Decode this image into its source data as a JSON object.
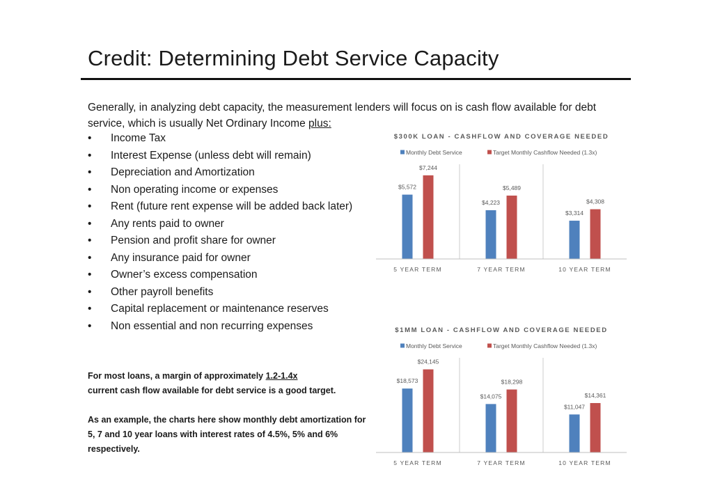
{
  "title": "Credit: Determining Debt Service Capacity",
  "intro": {
    "text": "Generally, in analyzing debt capacity, the measurement lenders will focus on is cash flow available for debt service, which is usually Net Ordinary Income ",
    "emphasis": "plus:"
  },
  "bullet_symbol": "•",
  "bullets": [
    "Income Tax",
    "Interest Expense (unless debt will remain)",
    "Depreciation and Amortization",
    "Non operating income or expenses",
    "Rent (future rent expense will be added back later)",
    "Any rents paid to owner",
    "Pension and profit share for owner",
    "Any insurance paid for owner",
    "Owner’s excess compensation",
    "Other payroll benefits",
    "Capital replacement or maintenance reserves",
    "Non essential and non recurring expenses"
  ],
  "note": {
    "line1_pre": "For most loans, a margin of approximately ",
    "line1_emph": "1.2-1.4x",
    "line2": "current cash flow available for debt service is a good target.",
    "para2": "As an example, the charts here show monthly debt amortization for 5, 7 and 10 year loans with interest rates of 4.5%, 5% and 6% respectively."
  },
  "colors": {
    "series1": "#4f81bd",
    "series2": "#c0504d",
    "axis": "#bfbfbf",
    "label": "#595959"
  },
  "chart_data": [
    {
      "type": "bar",
      "title": "$300K LOAN - CASHFLOW AND COVERAGE NEEDED",
      "categories": [
        "5 YEAR TERM",
        "7 YEAR TERM",
        "10 YEAR TERM"
      ],
      "series": [
        {
          "name": "Monthly Debt Service",
          "values": [
            5572,
            4223,
            3314
          ],
          "labels": [
            "$5,572",
            "$4,223",
            "$3,314"
          ]
        },
        {
          "name": "Target Monthly Cashflow Needed (1.3x)",
          "values": [
            7244,
            5489,
            4308
          ],
          "labels": [
            "$7,244",
            "$5,489",
            "$4,308"
          ]
        }
      ],
      "ylim": [
        0,
        8200
      ],
      "legend": "top",
      "grid": false
    },
    {
      "type": "bar",
      "title": "$1MM LOAN - CASHFLOW AND COVERAGE NEEDED",
      "categories": [
        "5 YEAR TERM",
        "7 YEAR TERM",
        "10 YEAR TERM"
      ],
      "series": [
        {
          "name": "Monthly Debt Service",
          "values": [
            18573,
            14075,
            11047
          ],
          "labels": [
            "$18,573",
            "$14,075",
            "$11,047"
          ]
        },
        {
          "name": "Target Monthly Cashflow Needed (1.3x)",
          "values": [
            24145,
            18298,
            14361
          ],
          "labels": [
            "$24,145",
            "$18,298",
            "$14,361"
          ]
        }
      ],
      "ylim": [
        0,
        27500
      ],
      "legend": "top",
      "grid": false
    }
  ]
}
